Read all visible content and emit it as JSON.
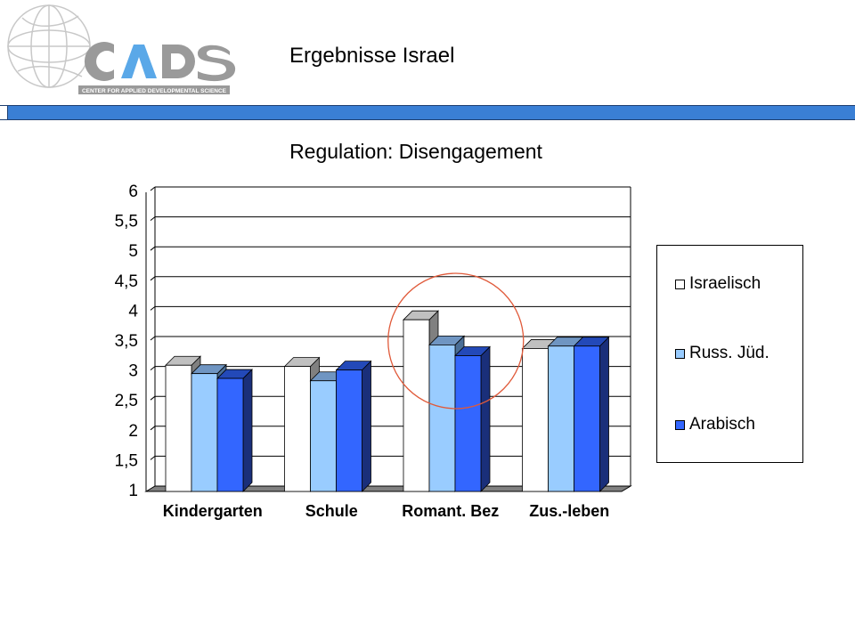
{
  "header": {
    "title": "Ergebnisse Israel",
    "logo_text": "CADS",
    "logo_subtitle": "CENTER FOR APPLIED DEVELOPMENTAL SCIENCE",
    "bar_color": "#3a7fd5"
  },
  "chart_data": {
    "type": "bar",
    "title": "Regulation: Disengagement",
    "categories": [
      "Kindergarten",
      "Schule",
      "Romant. Bez",
      "Zus.-leben"
    ],
    "series": [
      {
        "name": "Israelisch",
        "values": [
          3.02,
          3.0,
          3.78,
          3.3
        ],
        "color": "#ffffff"
      },
      {
        "name": "Russ. Jüd.",
        "values": [
          2.88,
          2.76,
          3.36,
          3.34
        ],
        "color": "#99ccff"
      },
      {
        "name": "Arabisch",
        "values": [
          2.8,
          2.94,
          3.18,
          3.34
        ],
        "color": "#3366ff"
      }
    ],
    "ylim": [
      1,
      6
    ],
    "yticks": [
      "1",
      "1,5",
      "2",
      "2,5",
      "3",
      "3,5",
      "4",
      "4,5",
      "5",
      "5,5",
      "6"
    ],
    "grid": true,
    "legend_position": "right",
    "highlight": "Romant. Bez"
  }
}
